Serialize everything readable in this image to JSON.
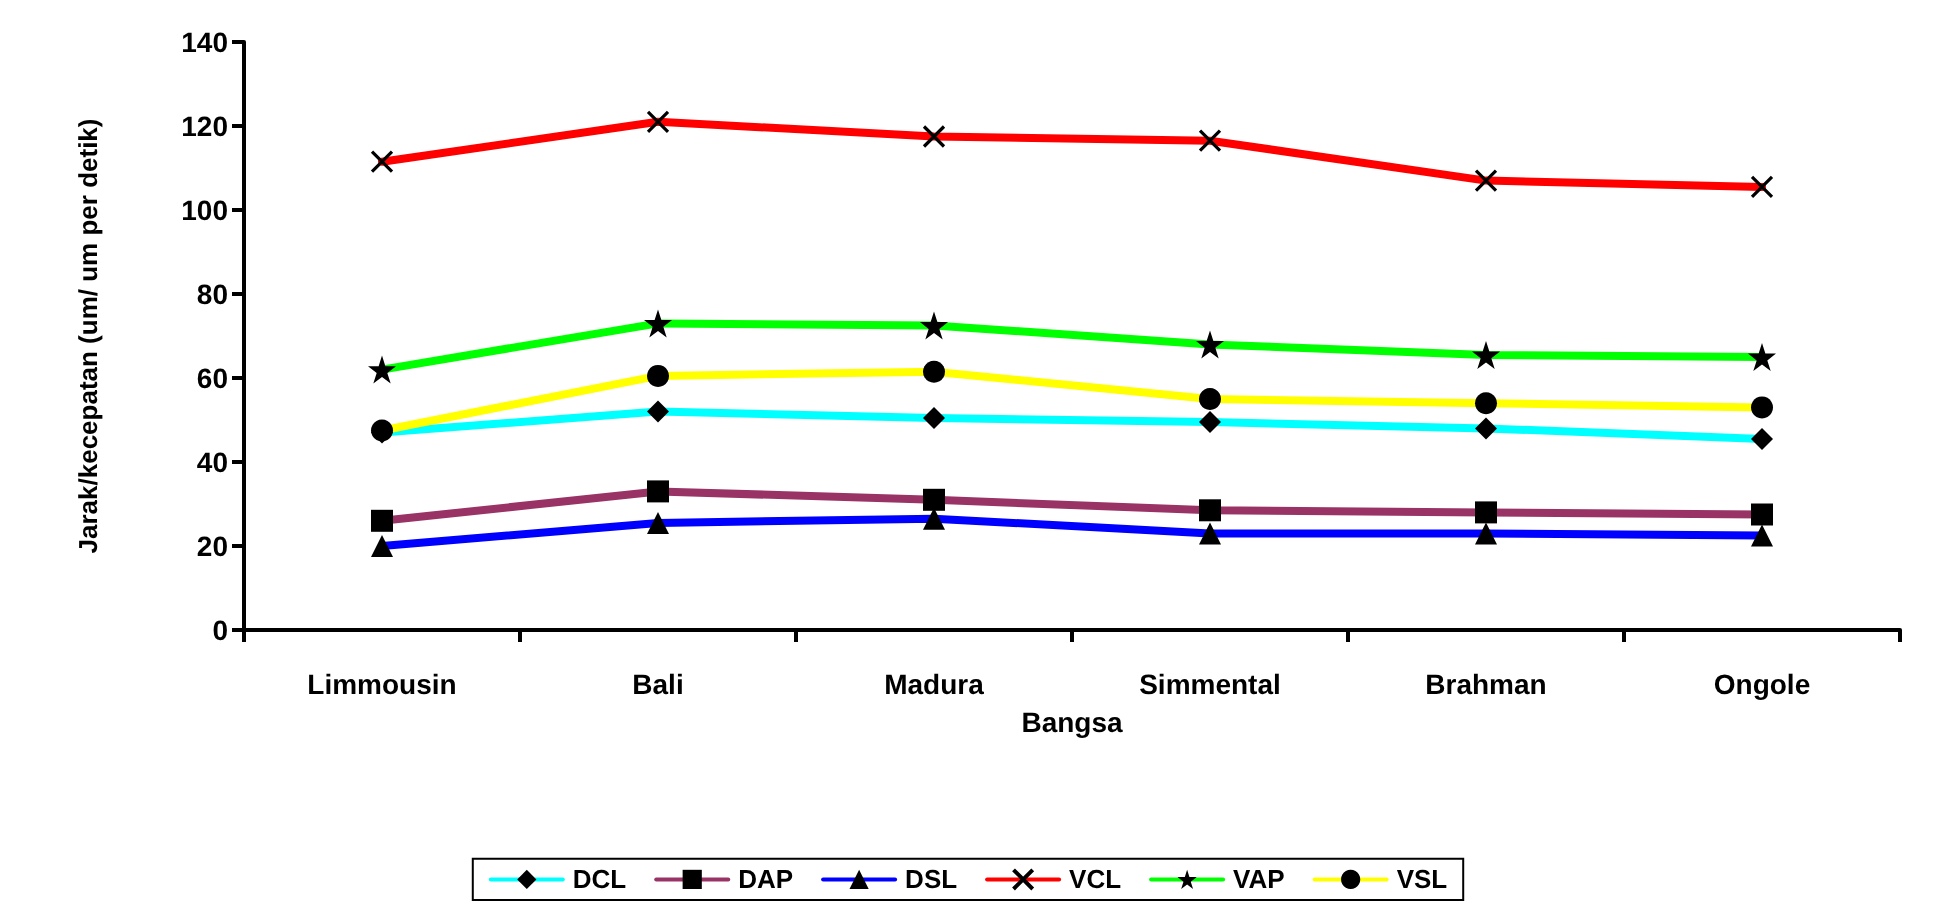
{
  "chart_data": {
    "type": "line",
    "xlabel": "Bangsa",
    "ylabel": "Jarak/kecepatan (um/ um per detik)",
    "categories": [
      "Limmousin",
      "Bali",
      "Madura",
      "Simmental",
      "Brahman",
      "Ongole"
    ],
    "series": [
      {
        "name": "DCL",
        "color": "#00ffff",
        "marker": "diamond",
        "values": [
          47,
          52,
          50.5,
          49.5,
          48,
          45.5
        ]
      },
      {
        "name": "DAP",
        "color": "#993366",
        "marker": "square",
        "values": [
          26,
          33,
          31,
          28.5,
          28,
          27.5
        ]
      },
      {
        "name": "DSL",
        "color": "#0000ff",
        "marker": "triangle",
        "values": [
          20,
          25.5,
          26.5,
          23,
          23,
          22.5
        ]
      },
      {
        "name": "VCL",
        "color": "#ff0000",
        "marker": "cross",
        "values": [
          111.5,
          121,
          117.5,
          116.5,
          107,
          105.5
        ]
      },
      {
        "name": "VAP",
        "color": "#00ff00",
        "marker": "star",
        "values": [
          62,
          73,
          72.5,
          68,
          65.5,
          65
        ]
      },
      {
        "name": "VSL",
        "color": "#ffff00",
        "marker": "circle",
        "values": [
          47.5,
          60.5,
          61.5,
          55,
          54,
          53
        ]
      }
    ],
    "ylim": [
      0,
      140
    ],
    "yticks": [
      0,
      20,
      40,
      60,
      80,
      100,
      120,
      140
    ],
    "grid": false,
    "legend": "bottom",
    "line_style": "solid"
  }
}
